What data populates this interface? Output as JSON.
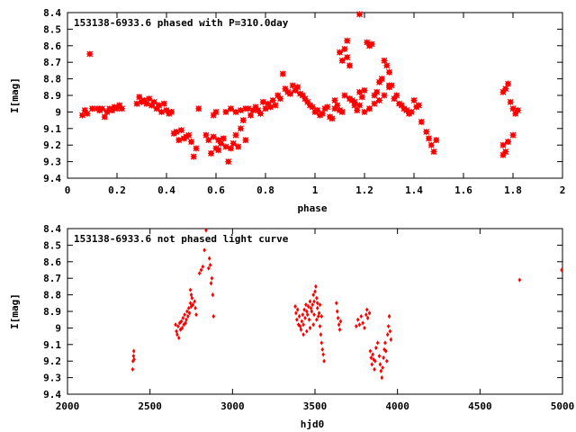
{
  "colors": {
    "points": "#ff0000",
    "axes": "#000000",
    "background": "#ffffff"
  },
  "chart_data": [
    {
      "type": "scatter",
      "title": "153138-6933.6 phased with P=310.0day",
      "xlabel": "phase",
      "ylabel": "I[mag]",
      "xlim": [
        0,
        2
      ],
      "ylim": [
        9.4,
        8.4
      ],
      "y_inverted": true,
      "grid": false,
      "marker": "star",
      "xticks": [
        "0",
        "0.2",
        "0.4",
        "0.6",
        "0.8",
        "1",
        "1.2",
        "1.4",
        "1.6",
        "1.8",
        "2"
      ],
      "yticks": [
        "8.4",
        "8.5",
        "8.6",
        "8.7",
        "8.8",
        "8.9",
        "9",
        "9.1",
        "9.2",
        "9.3",
        "9.4"
      ],
      "points": [
        [
          0.06,
          9.02
        ],
        [
          0.07,
          8.99
        ],
        [
          0.08,
          9.01
        ],
        [
          0.09,
          8.65
        ],
        [
          0.1,
          8.98
        ],
        [
          0.12,
          8.98
        ],
        [
          0.13,
          8.99
        ],
        [
          0.14,
          8.98
        ],
        [
          0.15,
          9.03
        ],
        [
          0.16,
          9.0
        ],
        [
          0.17,
          8.98
        ],
        [
          0.18,
          8.99
        ],
        [
          0.19,
          8.97
        ],
        [
          0.2,
          8.98
        ],
        [
          0.21,
          8.96
        ],
        [
          0.22,
          8.98
        ],
        [
          0.28,
          8.95
        ],
        [
          0.29,
          8.91
        ],
        [
          0.3,
          8.94
        ],
        [
          0.31,
          8.93
        ],
        [
          0.32,
          8.95
        ],
        [
          0.33,
          8.92
        ],
        [
          0.34,
          8.96
        ],
        [
          0.35,
          8.94
        ],
        [
          0.36,
          8.98
        ],
        [
          0.37,
          8.96
        ],
        [
          0.38,
          9.0
        ],
        [
          0.39,
          8.95
        ],
        [
          0.4,
          8.99
        ],
        [
          0.41,
          9.01
        ],
        [
          0.42,
          9.0
        ],
        [
          0.43,
          9.13
        ],
        [
          0.44,
          9.12
        ],
        [
          0.45,
          9.17
        ],
        [
          0.46,
          9.11
        ],
        [
          0.47,
          9.16
        ],
        [
          0.48,
          9.15
        ],
        [
          0.49,
          9.14
        ],
        [
          0.5,
          9.18
        ],
        [
          0.51,
          9.27
        ],
        [
          0.52,
          9.22
        ],
        [
          0.53,
          8.98
        ],
        [
          0.56,
          9.14
        ],
        [
          0.57,
          9.17
        ],
        [
          0.58,
          9.25
        ],
        [
          0.59,
          9.02
        ],
        [
          0.6,
          9.0
        ],
        [
          0.59,
          9.15
        ],
        [
          0.6,
          9.22
        ],
        [
          0.61,
          9.17
        ],
        [
          0.61,
          9.23
        ],
        [
          0.62,
          9.19
        ],
        [
          0.63,
          9.16
        ],
        [
          0.64,
          9.21
        ],
        [
          0.65,
          9.3
        ],
        [
          0.66,
          9.22
        ],
        [
          0.67,
          9.19
        ],
        [
          0.68,
          9.14
        ],
        [
          0.69,
          9.21
        ],
        [
          0.7,
          9.1
        ],
        [
          0.71,
          9.05
        ],
        [
          0.72,
          9.17
        ],
        [
          0.73,
          8.98
        ],
        [
          0.64,
          9.0
        ],
        [
          0.66,
          8.98
        ],
        [
          0.68,
          9.0
        ],
        [
          0.7,
          8.99
        ],
        [
          0.72,
          8.98
        ],
        [
          0.74,
          9.02
        ],
        [
          0.75,
          8.99
        ],
        [
          0.76,
          8.97
        ],
        [
          0.77,
          8.99
        ],
        [
          0.78,
          9.01
        ],
        [
          0.79,
          8.94
        ],
        [
          0.8,
          8.98
        ],
        [
          0.81,
          8.95
        ],
        [
          0.82,
          8.97
        ],
        [
          0.83,
          8.93
        ],
        [
          0.84,
          8.96
        ],
        [
          0.85,
          8.9
        ],
        [
          0.86,
          8.92
        ],
        [
          0.87,
          8.77
        ],
        [
          0.88,
          8.86
        ],
        [
          0.89,
          8.88
        ],
        [
          0.9,
          8.89
        ],
        [
          0.91,
          8.84
        ],
        [
          0.92,
          8.87
        ],
        [
          0.93,
          8.85
        ],
        [
          0.94,
          8.89
        ],
        [
          0.95,
          8.9
        ],
        [
          0.96,
          8.92
        ],
        [
          0.97,
          8.94
        ],
        [
          0.98,
          8.96
        ],
        [
          0.99,
          8.97
        ],
        [
          1.0,
          9.0
        ],
        [
          1.01,
          8.99
        ],
        [
          1.02,
          9.02
        ],
        [
          1.03,
          9.01
        ],
        [
          1.04,
          8.98
        ],
        [
          1.05,
          8.97
        ],
        [
          1.06,
          9.03
        ],
        [
          1.07,
          9.04
        ],
        [
          1.08,
          8.98
        ],
        [
          1.09,
          8.96
        ],
        [
          1.1,
          8.99
        ],
        [
          1.11,
          9.0
        ],
        [
          1.1,
          8.64
        ],
        [
          1.11,
          8.69
        ],
        [
          1.12,
          8.62
        ],
        [
          1.13,
          8.57
        ],
        [
          1.13,
          8.67
        ],
        [
          1.14,
          8.72
        ],
        [
          1.15,
          8.93
        ],
        [
          1.16,
          8.96
        ],
        [
          1.17,
          8.99
        ],
        [
          1.18,
          8.88
        ],
        [
          1.19,
          8.91
        ],
        [
          1.2,
          8.87
        ],
        [
          1.18,
          8.41
        ],
        [
          1.21,
          8.58
        ],
        [
          1.22,
          8.6
        ],
        [
          1.23,
          8.59
        ],
        [
          1.24,
          8.9
        ],
        [
          1.25,
          8.88
        ],
        [
          1.26,
          8.82
        ],
        [
          1.27,
          8.8
        ],
        [
          1.28,
          8.69
        ],
        [
          1.29,
          8.72
        ],
        [
          1.3,
          8.76
        ],
        [
          1.3,
          8.85
        ],
        [
          1.31,
          8.84
        ],
        [
          1.32,
          8.92
        ],
        [
          1.33,
          8.9
        ],
        [
          1.34,
          8.95
        ],
        [
          1.35,
          8.96
        ],
        [
          1.36,
          8.98
        ],
        [
          1.37,
          8.99
        ],
        [
          1.38,
          9.01
        ],
        [
          1.39,
          9.0
        ],
        [
          1.4,
          8.93
        ],
        [
          1.41,
          8.97
        ],
        [
          1.42,
          8.96
        ],
        [
          1.43,
          9.06
        ],
        [
          1.45,
          9.12
        ],
        [
          1.46,
          9.16
        ],
        [
          1.47,
          9.2
        ],
        [
          1.48,
          9.24
        ],
        [
          1.49,
          9.17
        ],
        [
          1.3,
          8.84
        ],
        [
          1.28,
          8.9
        ],
        [
          1.26,
          8.93
        ],
        [
          1.24,
          8.95
        ],
        [
          1.22,
          8.98
        ],
        [
          1.2,
          9.0
        ],
        [
          1.18,
          8.96
        ],
        [
          1.16,
          8.94
        ],
        [
          1.14,
          8.92
        ],
        [
          1.12,
          8.9
        ],
        [
          1.08,
          8.93
        ],
        [
          1.76,
          8.88
        ],
        [
          1.77,
          8.86
        ],
        [
          1.78,
          8.83
        ],
        [
          1.76,
          9.2
        ],
        [
          1.77,
          9.24
        ],
        [
          1.78,
          9.18
        ],
        [
          1.79,
          8.94
        ],
        [
          1.8,
          8.98
        ],
        [
          1.81,
          9.01
        ],
        [
          1.82,
          8.99
        ],
        [
          1.8,
          9.14
        ],
        [
          1.76,
          9.26
        ]
      ]
    },
    {
      "type": "scatter",
      "title": "153138-6933.6 not phased light curve",
      "xlabel": "hjd0",
      "ylabel": "I[mag]",
      "xlim": [
        2000,
        5000
      ],
      "ylim": [
        9.4,
        8.4
      ],
      "y_inverted": true,
      "grid": false,
      "marker": "diamond",
      "xticks": [
        "2000",
        "2500",
        "3000",
        "3500",
        "4000",
        "4500",
        "5000"
      ],
      "yticks": [
        "8.4",
        "8.5",
        "8.6",
        "8.7",
        "8.8",
        "8.9",
        "9",
        "9.1",
        "9.2",
        "9.3",
        "9.4"
      ],
      "points": [
        [
          2395,
          9.25
        ],
        [
          2397,
          9.2
        ],
        [
          2400,
          9.17
        ],
        [
          2402,
          9.14
        ],
        [
          2404,
          9.19
        ],
        [
          2655,
          8.98
        ],
        [
          2660,
          9.02
        ],
        [
          2665,
          9.04
        ],
        [
          2670,
          8.99
        ],
        [
          2675,
          9.06
        ],
        [
          2680,
          8.97
        ],
        [
          2685,
          9.01
        ],
        [
          2690,
          8.96
        ],
        [
          2695,
          9.0
        ],
        [
          2700,
          8.94
        ],
        [
          2705,
          8.98
        ],
        [
          2710,
          8.92
        ],
        [
          2715,
          8.97
        ],
        [
          2720,
          8.95
        ],
        [
          2725,
          8.9
        ],
        [
          2730,
          8.93
        ],
        [
          2735,
          8.88
        ],
        [
          2740,
          8.91
        ],
        [
          2745,
          8.85
        ],
        [
          2750,
          8.87
        ],
        [
          2755,
          8.82
        ],
        [
          2760,
          8.86
        ],
        [
          2745,
          8.77
        ],
        [
          2750,
          8.8
        ],
        [
          2770,
          8.84
        ],
        [
          2775,
          8.88
        ],
        [
          2780,
          8.92
        ],
        [
          2800,
          8.67
        ],
        [
          2810,
          8.65
        ],
        [
          2820,
          8.63
        ],
        [
          2830,
          8.53
        ],
        [
          2840,
          8.41
        ],
        [
          2855,
          8.64
        ],
        [
          2860,
          8.58
        ],
        [
          2865,
          8.62
        ],
        [
          2870,
          8.73
        ],
        [
          2875,
          8.7
        ],
        [
          2880,
          8.8
        ],
        [
          2885,
          8.93
        ],
        [
          3380,
          8.87
        ],
        [
          3385,
          8.91
        ],
        [
          3390,
          8.95
        ],
        [
          3395,
          8.89
        ],
        [
          3400,
          8.98
        ],
        [
          3405,
          8.93
        ],
        [
          3410,
          8.99
        ],
        [
          3415,
          9.01
        ],
        [
          3420,
          8.96
        ],
        [
          3425,
          8.92
        ],
        [
          3430,
          8.98
        ],
        [
          3435,
          8.89
        ],
        [
          3440,
          8.94
        ],
        [
          3445,
          8.86
        ],
        [
          3450,
          8.9
        ],
        [
          3455,
          8.92
        ],
        [
          3460,
          8.87
        ],
        [
          3465,
          8.95
        ],
        [
          3470,
          8.84
        ],
        [
          3475,
          8.88
        ],
        [
          3480,
          8.9
        ],
        [
          3485,
          8.86
        ],
        [
          3490,
          8.8
        ],
        [
          3495,
          8.84
        ],
        [
          3500,
          8.78
        ],
        [
          3505,
          8.75
        ],
        [
          3510,
          8.82
        ],
        [
          3515,
          8.88
        ],
        [
          3520,
          8.93
        ],
        [
          3525,
          8.91
        ],
        [
          3530,
          8.99
        ],
        [
          3535,
          9.04
        ],
        [
          3540,
          9.09
        ],
        [
          3545,
          9.13
        ],
        [
          3550,
          9.16
        ],
        [
          3555,
          9.2
        ],
        [
          3540,
          8.93
        ],
        [
          3530,
          8.86
        ],
        [
          3510,
          8.95
        ],
        [
          3490,
          8.98
        ],
        [
          3470,
          9.0
        ],
        [
          3450,
          9.02
        ],
        [
          3430,
          9.04
        ],
        [
          3495,
          8.92
        ],
        [
          3515,
          8.85
        ],
        [
          3630,
          8.85
        ],
        [
          3635,
          8.9
        ],
        [
          3640,
          8.94
        ],
        [
          3645,
          8.98
        ],
        [
          3650,
          9.01
        ],
        [
          3655,
          8.96
        ],
        [
          3750,
          8.99
        ],
        [
          3760,
          8.95
        ],
        [
          3770,
          8.98
        ],
        [
          3780,
          8.93
        ],
        [
          3790,
          8.97
        ],
        [
          3800,
          9.0
        ],
        [
          3810,
          8.92
        ],
        [
          3815,
          8.89
        ],
        [
          3820,
          8.94
        ],
        [
          3830,
          8.91
        ],
        [
          3835,
          9.14
        ],
        [
          3840,
          9.18
        ],
        [
          3845,
          9.22
        ],
        [
          3850,
          9.16
        ],
        [
          3855,
          9.19
        ],
        [
          3860,
          9.25
        ],
        [
          3865,
          9.2
        ],
        [
          3870,
          9.12
        ],
        [
          3880,
          9.09
        ],
        [
          3890,
          9.17
        ],
        [
          3895,
          9.22
        ],
        [
          3900,
          9.26
        ],
        [
          3905,
          9.3
        ],
        [
          3910,
          9.24
        ],
        [
          3915,
          9.18
        ],
        [
          3920,
          9.13
        ],
        [
          3925,
          9.09
        ],
        [
          3930,
          9.14
        ],
        [
          3935,
          9.2
        ],
        [
          3940,
          9.04
        ],
        [
          3945,
          8.99
        ],
        [
          3950,
          8.93
        ],
        [
          3955,
          9.02
        ],
        [
          3960,
          9.07
        ],
        [
          4740,
          8.71
        ],
        [
          4995,
          8.65
        ]
      ]
    }
  ]
}
